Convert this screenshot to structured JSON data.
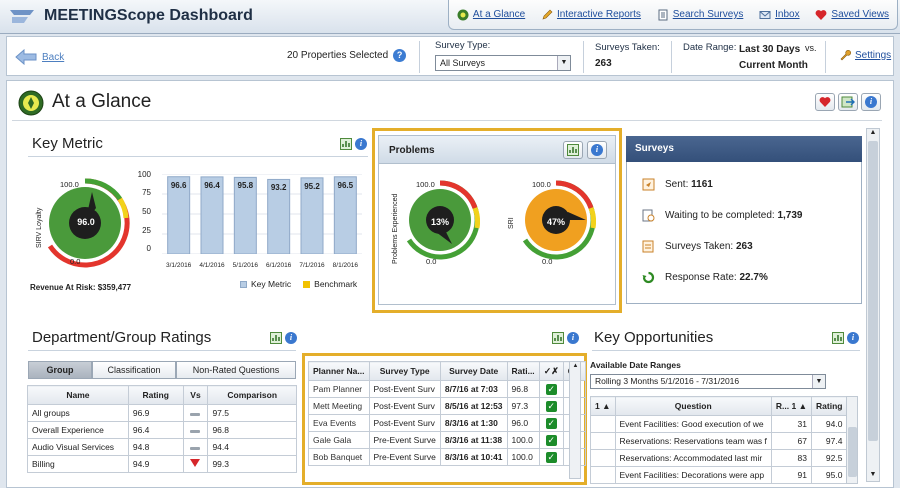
{
  "app": {
    "title": "MEETINGScope Dashboard"
  },
  "nav": [
    {
      "label": "At a Glance",
      "icon": "glance-icon"
    },
    {
      "label": "Interactive Reports",
      "icon": "pencil-icon"
    },
    {
      "label": "Search Surveys",
      "icon": "document-icon"
    },
    {
      "label": "Inbox",
      "icon": "mail-icon"
    },
    {
      "label": "Saved Views",
      "icon": "heart-icon"
    }
  ],
  "filters": {
    "back_label": "Back",
    "properties_selected": "20 Properties Selected",
    "survey_type_label": "Survey Type:",
    "survey_type_value": "All Surveys",
    "surveys_taken_label": "Surveys Taken:",
    "surveys_taken_value": "263",
    "date_range_label": "Date Range:",
    "date_range_value_1": "Last 30 Days",
    "date_range_vs": "vs.",
    "date_range_value_2": "Current Month",
    "settings_label": "Settings"
  },
  "page": {
    "title": "At a Glance"
  },
  "key_metric": {
    "title": "Key Metric",
    "gauge": {
      "label": "SIRV Loyalty",
      "max": "100.0",
      "min": "0.0",
      "value": "96.0"
    },
    "revenue_at_risk": "Revenue At Risk: $359,477",
    "legend_key": "Key Metric",
    "legend_bench": "Benchmark"
  },
  "chart_data": {
    "type": "bar",
    "categories": [
      "3/1/2016",
      "4/1/2016",
      "5/1/2016",
      "6/1/2016",
      "7/1/2016",
      "8/1/2016"
    ],
    "series": [
      {
        "name": "Key Metric",
        "values": [
          96.6,
          96.4,
          95.8,
          93.2,
          95.2,
          96.5
        ]
      }
    ],
    "ylim": [
      0,
      100
    ],
    "yticks": [
      "100",
      "75",
      "50",
      "25",
      "0"
    ],
    "labels": [
      "96.6",
      "96.4",
      "95.8",
      "93.2",
      "95.2",
      "96.5"
    ],
    "legend": "bottom",
    "colors": {
      "bar": "#b8cde4",
      "benchmark": "#f2c200"
    }
  },
  "problems": {
    "title": "Problems",
    "gauge1": {
      "label": "Problems Experienced",
      "max": "100.0",
      "min": "0.0",
      "value": "13%"
    },
    "gauge2": {
      "label": "SRI",
      "max": "100.0",
      "min": "0.0",
      "value": "47%"
    }
  },
  "surveys": {
    "title": "Surveys",
    "sent_label": "Sent:",
    "sent_value": "1161",
    "waiting_label": "Waiting to be completed:",
    "waiting_value": "1,739",
    "taken_label": "Surveys Taken:",
    "taken_value": "263",
    "response_label": "Response Rate:",
    "response_value": "22.7%"
  },
  "dept": {
    "title": "Department/Group Ratings",
    "tabs": [
      "Group",
      "Classification",
      "Non-Rated Questions"
    ],
    "columns": [
      "Name",
      "Rating",
      "Vs",
      "Comparison"
    ],
    "rows": [
      {
        "name": "All groups",
        "rating": "96.9",
        "vs": "flat",
        "comparison": "97.5"
      },
      {
        "name": "Overall Experience",
        "rating": "96.4",
        "vs": "flat",
        "comparison": "96.8"
      },
      {
        "name": "Audio Visual Services",
        "rating": "94.8",
        "vs": "flat",
        "comparison": "94.4"
      },
      {
        "name": "Billing",
        "rating": "94.9",
        "vs": "down",
        "comparison": "99.3"
      }
    ]
  },
  "planner": {
    "columns": [
      "Planner Na...",
      "Survey Type",
      "Survey Date",
      "Rati...",
      "",
      "C..."
    ],
    "rows": [
      {
        "name": "Pam Planner",
        "type": "Post-Event Surv",
        "date": "8/7/16 at 7:03",
        "rating": "96.8",
        "check": true,
        "comment": true
      },
      {
        "name": "Mett Meeting",
        "type": "Post-Event Surv",
        "date": "8/5/16 at 12:53",
        "rating": "97.3",
        "check": true,
        "comment": true
      },
      {
        "name": "Eva Events",
        "type": "Post-Event Surv",
        "date": "8/3/16 at 1:30",
        "rating": "96.0",
        "check": true,
        "comment": false
      },
      {
        "name": "Gale Gala",
        "type": "Pre-Event Surve",
        "date": "8/3/16 at 11:38",
        "rating": "100.0",
        "check": true,
        "comment": true
      },
      {
        "name": "Bob Banquet",
        "type": "Pre-Event Surve",
        "date": "8/3/16 at 10:41",
        "rating": "100.0",
        "check": true,
        "comment": true
      }
    ]
  },
  "opportunities": {
    "title": "Key Opportunities",
    "date_ranges_label": "Available Date Ranges",
    "date_range_value": "Rolling 3 Months 5/1/2016 - 7/31/2016",
    "columns": [
      "1 ▲",
      "Question",
      "R... 1 ▲",
      "Rating"
    ],
    "rows": [
      {
        "question": "Event Facilities: Good execution of we",
        "r": "31",
        "rating": "94.0"
      },
      {
        "question": "Reservations: Reservations team was f",
        "r": "67",
        "rating": "97.4"
      },
      {
        "question": "Reservations: Accommodated last mir",
        "r": "83",
        "rating": "92.5"
      },
      {
        "question": "Event Facilities: Decorations were app",
        "r": "91",
        "rating": "95.0"
      }
    ]
  }
}
